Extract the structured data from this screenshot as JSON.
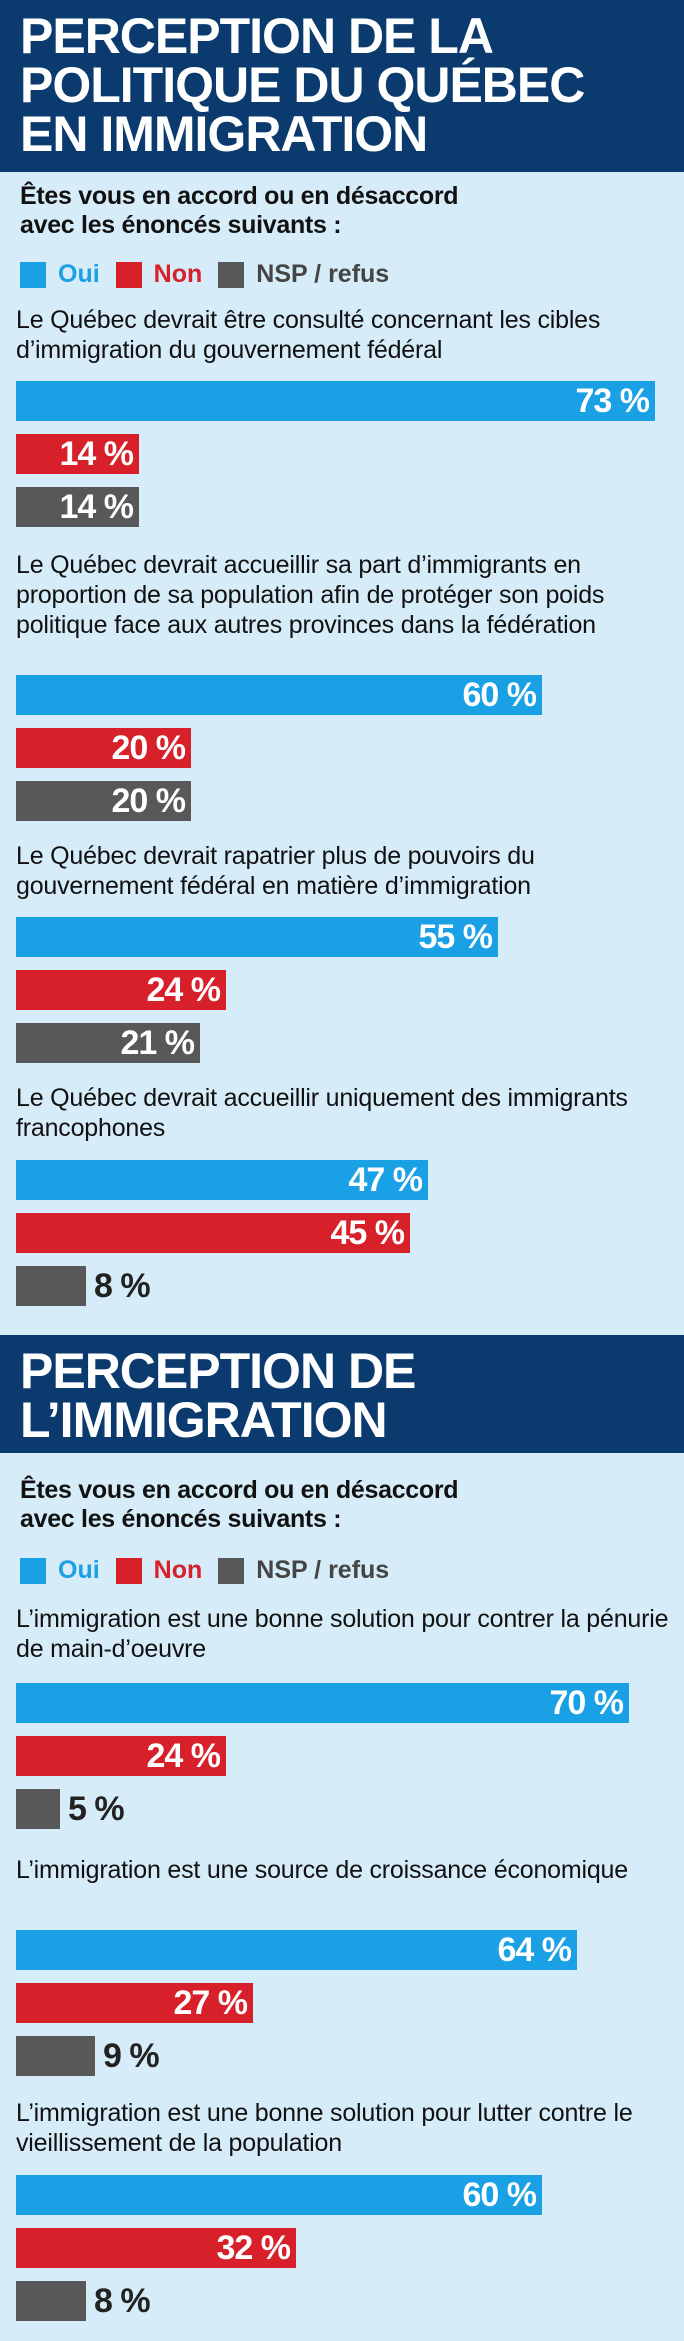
{
  "colors": {
    "background": "#d6ecf9",
    "header": "#0b3a6e",
    "oui": "#1aa0e4",
    "non": "#d7202a",
    "nsp": "#585858"
  },
  "chart_data": [
    {
      "type": "bar",
      "title": [
        "PERCEPTION DE LA",
        "POLITIQUE DU QUÉBEC",
        "EN IMMIGRATION"
      ],
      "subtitle": [
        "Êtes vous en accord ou en désaccord",
        "avec les énoncés suivants :"
      ],
      "legend": [
        "Oui",
        "Non",
        "NSP / refus"
      ],
      "unit": "%",
      "xlim": [
        0,
        75
      ],
      "questions": [
        {
          "text": "Le Québec devrait être consulté concernant les cibles d’immigration du gouvernement fédéral",
          "values": [
            73,
            14,
            14
          ],
          "labels": [
            "73 %",
            "14 %",
            "14 %"
          ]
        },
        {
          "text": "Le Québec devrait accueillir sa part d’immigrants en proportion de sa population afin de protéger son poids politique face aux autres provinces dans la fédération",
          "values": [
            60,
            20,
            20
          ],
          "labels": [
            "60 %",
            "20 %",
            "20 %"
          ]
        },
        {
          "text": "Le Québec devrait rapatrier plus de pouvoirs du gouvernement fédéral en matière d’immigration",
          "values": [
            55,
            24,
            21
          ],
          "labels": [
            "55 %",
            "24 %",
            "21 %"
          ]
        },
        {
          "text": "Le Québec devrait accueillir uniquement des immigrants francophones",
          "values": [
            47,
            45,
            8
          ],
          "labels": [
            "47 %",
            "45 %",
            "8 %"
          ]
        }
      ]
    },
    {
      "type": "bar",
      "title": [
        "PERCEPTION DE",
        "L’IMMIGRATION"
      ],
      "subtitle": [
        "Êtes vous en accord ou en désaccord",
        "avec les énoncés suivants :"
      ],
      "legend": [
        "Oui",
        "Non",
        "NSP / refus"
      ],
      "unit": "%",
      "xlim": [
        0,
        75
      ],
      "questions": [
        {
          "text": "L’immigration est une bonne solution pour contrer la pénurie de main-d’oeuvre",
          "values": [
            70,
            24,
            5
          ],
          "labels": [
            "70 %",
            "24 %",
            "5 %"
          ]
        },
        {
          "text": "L’immigration est une source de croissance économique",
          "values": [
            64,
            27,
            9
          ],
          "labels": [
            "64 %",
            "27 %",
            "9 %"
          ]
        },
        {
          "text": "L’immigration est une bonne solution pour lutter contre le vieillissement de la population",
          "values": [
            60,
            32,
            8
          ],
          "labels": [
            "60 %",
            "32 %",
            "8 %"
          ]
        }
      ]
    }
  ]
}
